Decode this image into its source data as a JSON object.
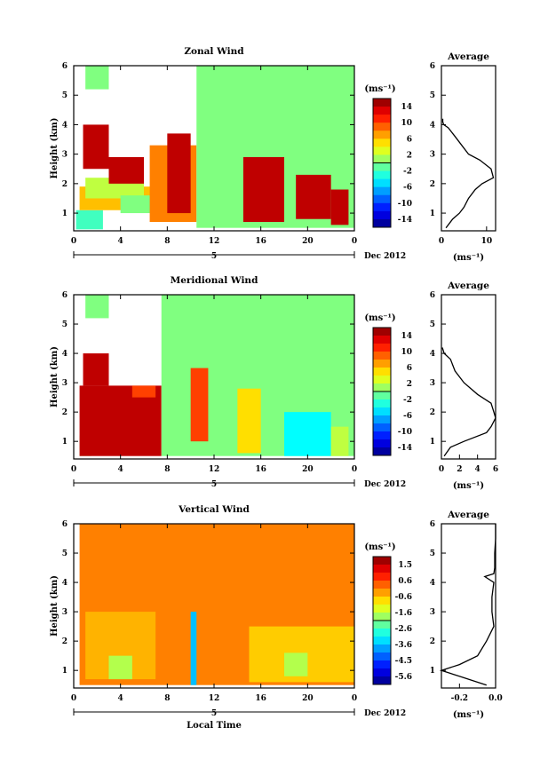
{
  "chart_data": [
    {
      "type": "heatmap",
      "title": "Zonal Wind",
      "ylabel": "Height (km)",
      "xlabel": "",
      "y_ticks": [
        "1",
        "2",
        "3",
        "4",
        "5",
        "6"
      ],
      "ylim": [
        0.4,
        6
      ],
      "x_ticks": [
        "0",
        "4",
        "8",
        "12",
        "16",
        "20",
        "0"
      ],
      "xlim": [
        0,
        24
      ],
      "date_marker": "5",
      "date_label": "Dec 2012",
      "colorbar_unit": "(ms⁻¹)",
      "colorbar_ticks": [
        "14",
        "10",
        "6",
        "2",
        "-2",
        "-6",
        "-10",
        "-14"
      ],
      "colorbar_range": [
        -16,
        16
      ],
      "average": {
        "title": "Average",
        "xlabel": "(ms⁻¹)",
        "x_ticks": [
          "0",
          "10"
        ],
        "xlim": [
          0,
          12
        ],
        "height": [
          0.5,
          0.8,
          1.0,
          1.2,
          1.5,
          1.8,
          2.0,
          2.2,
          2.5,
          2.8,
          3.0,
          3.3,
          3.6,
          3.9,
          4.0,
          4.1,
          4.2
        ],
        "value": [
          1.0,
          2.5,
          4.0,
          5.0,
          6.0,
          7.5,
          9.0,
          11.5,
          11.0,
          8.5,
          6.0,
          4.5,
          3.0,
          1.5,
          0.5,
          0.3,
          0.3
        ]
      },
      "blocks": [
        {
          "x0": 0.2,
          "x1": 2.5,
          "y0": 0.45,
          "y1": 1.1,
          "v": -2
        },
        {
          "x0": 0.5,
          "x1": 7,
          "y0": 1.1,
          "y1": 1.9,
          "v": 6
        },
        {
          "x0": 1,
          "x1": 6,
          "y0": 1.5,
          "y1": 2.2,
          "v": 2
        },
        {
          "x0": 0.8,
          "x1": 3,
          "y0": 2.5,
          "y1": 4.0,
          "v": 14
        },
        {
          "x0": 3,
          "x1": 6,
          "y0": 2.0,
          "y1": 2.9,
          "v": 14
        },
        {
          "x0": 4,
          "x1": 7,
          "y0": 1.0,
          "y1": 1.6,
          "v": 0
        },
        {
          "x0": 1,
          "x1": 3,
          "y0": 5.2,
          "y1": 6.0,
          "v": 0
        },
        {
          "x0": 6.5,
          "x1": 10.5,
          "y0": 0.7,
          "y1": 3.3,
          "v": 8
        },
        {
          "x0": 8,
          "x1": 10,
          "y0": 1.0,
          "y1": 3.7,
          "v": 14
        },
        {
          "x0": 10.5,
          "x1": 24,
          "y0": 0.5,
          "y1": 6.0,
          "v": 0
        },
        {
          "x0": 14.5,
          "x1": 18,
          "y0": 0.7,
          "y1": 2.9,
          "v": 14
        },
        {
          "x0": 19,
          "x1": 22,
          "y0": 0.8,
          "y1": 2.3,
          "v": 14
        },
        {
          "x0": 22,
          "x1": 23.5,
          "y0": 0.6,
          "y1": 1.8,
          "v": 14
        }
      ]
    },
    {
      "type": "heatmap",
      "title": "Meridional Wind",
      "ylabel": "Height (km)",
      "xlabel": "",
      "y_ticks": [
        "1",
        "2",
        "3",
        "4",
        "5",
        "6"
      ],
      "ylim": [
        0.4,
        6
      ],
      "x_ticks": [
        "0",
        "4",
        "8",
        "12",
        "16",
        "20",
        "0"
      ],
      "xlim": [
        0,
        24
      ],
      "date_marker": "5",
      "date_label": "Dec 2012",
      "colorbar_unit": "(ms⁻¹)",
      "colorbar_ticks": [
        "14",
        "10",
        "6",
        "2",
        "-2",
        "-6",
        "-10",
        "-14"
      ],
      "colorbar_range": [
        -16,
        16
      ],
      "average": {
        "title": "Average",
        "xlabel": "(ms⁻¹)",
        "x_ticks": [
          "0",
          "2",
          "4",
          "6"
        ],
        "xlim": [
          0,
          6
        ],
        "height": [
          0.5,
          0.8,
          1.0,
          1.3,
          1.5,
          1.8,
          2.0,
          2.3,
          2.6,
          3.0,
          3.4,
          3.8,
          4.0,
          4.2
        ],
        "value": [
          0.3,
          1.0,
          2.5,
          5.0,
          5.5,
          6.0,
          5.8,
          5.5,
          4.0,
          2.5,
          1.5,
          1.0,
          0.3,
          0.1
        ]
      },
      "blocks": [
        {
          "x0": 0.5,
          "x1": 1.5,
          "y0": 0.5,
          "y1": 1.2,
          "v": 0
        },
        {
          "x0": 0.5,
          "x1": 7.5,
          "y0": 0.5,
          "y1": 2.9,
          "v": 14
        },
        {
          "x0": 0.8,
          "x1": 3,
          "y0": 2.9,
          "y1": 4.0,
          "v": 14
        },
        {
          "x0": 5,
          "x1": 7,
          "y0": 2.5,
          "y1": 2.9,
          "v": 10
        },
        {
          "x0": 1,
          "x1": 3,
          "y0": 5.2,
          "y1": 6.0,
          "v": 0
        },
        {
          "x0": 7.5,
          "x1": 24,
          "y0": 0.5,
          "y1": 6.0,
          "v": 0
        },
        {
          "x0": 10,
          "x1": 11.5,
          "y0": 1.0,
          "y1": 3.5,
          "v": 10
        },
        {
          "x0": 14,
          "x1": 16,
          "y0": 0.6,
          "y1": 2.8,
          "v": 5
        },
        {
          "x0": 18,
          "x1": 22,
          "y0": 0.5,
          "y1": 2.0,
          "v": -4
        },
        {
          "x0": 22,
          "x1": 23.5,
          "y0": 0.5,
          "y1": 1.5,
          "v": 2
        }
      ]
    },
    {
      "type": "heatmap",
      "title": "Vertical Wind",
      "ylabel": "Height (km)",
      "xlabel": "Local Time",
      "y_ticks": [
        "1",
        "2",
        "3",
        "4",
        "5",
        "6"
      ],
      "ylim": [
        0.4,
        6
      ],
      "x_ticks": [
        "0",
        "4",
        "8",
        "12",
        "16",
        "20",
        "0"
      ],
      "xlim": [
        0,
        24
      ],
      "date_marker": "5",
      "date_label": "Dec 2012",
      "colorbar_unit": "(ms⁻¹)",
      "colorbar_ticks": [
        "1.5",
        "0.6",
        "-0.6",
        "-1.6",
        "-2.6",
        "-3.6",
        "-4.5",
        "-5.6"
      ],
      "colorbar_range": [
        -6,
        2
      ],
      "average": {
        "title": "Average",
        "xlabel": "(ms⁻¹)",
        "x_ticks": [
          "-0.2",
          "0.0"
        ],
        "xlim": [
          -0.3,
          0.0
        ],
        "height": [
          0.5,
          0.7,
          0.9,
          1.0,
          1.2,
          1.5,
          2.0,
          2.5,
          3.0,
          3.5,
          4.0,
          4.2,
          4.3,
          4.5,
          5.0,
          5.5,
          6.0
        ],
        "value": [
          -0.05,
          -0.15,
          -0.25,
          -0.3,
          -0.2,
          -0.1,
          -0.05,
          -0.01,
          -0.02,
          -0.02,
          -0.01,
          -0.06,
          -0.01,
          -0.005,
          -0.005,
          0.0,
          0.0
        ]
      },
      "blocks": [
        {
          "x0": 0.5,
          "x1": 24,
          "y0": 0.5,
          "y1": 6.0,
          "v": 0
        },
        {
          "x0": 1,
          "x1": 7,
          "y0": 0.7,
          "y1": 3.0,
          "v": -0.4
        },
        {
          "x0": 3,
          "x1": 5,
          "y0": 0.7,
          "y1": 1.5,
          "v": -1.6
        },
        {
          "x0": 10,
          "x1": 10.5,
          "y0": 0.5,
          "y1": 3.0,
          "v": -3.5
        },
        {
          "x0": 15,
          "x1": 24,
          "y0": 0.6,
          "y1": 2.5,
          "v": -0.6
        },
        {
          "x0": 18,
          "x1": 20,
          "y0": 0.8,
          "y1": 1.6,
          "v": -1.6
        }
      ]
    }
  ]
}
